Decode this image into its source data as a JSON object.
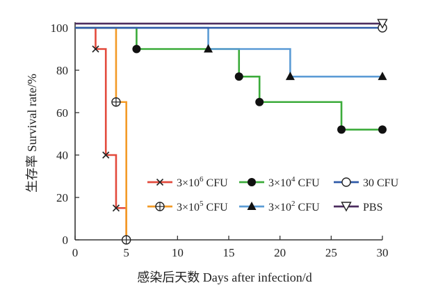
{
  "chart_data": {
    "type": "line",
    "step": true,
    "xlabel": "感染后天数 Days after infection/d",
    "ylabel": "生存率 Survival rate/%",
    "xlim": [
      0,
      30
    ],
    "ylim": [
      0,
      100
    ],
    "xticks": [
      0,
      5,
      10,
      15,
      20,
      25,
      30
    ],
    "yticks": [
      0,
      20,
      40,
      60,
      80,
      100
    ],
    "grid": false,
    "legend_placement": "lower-right, inside plot, two rows of three entries",
    "series": [
      {
        "name": "3×10⁶ CFU",
        "name_base": "3×10",
        "name_exp": "6",
        "name_unit": " CFU",
        "color": "#e34a3c",
        "marker": "x",
        "x": [
          0,
          2,
          3,
          4,
          5
        ],
        "y": [
          100,
          90,
          40,
          15,
          0
        ],
        "marker_x": [
          2,
          3,
          4,
          5
        ],
        "marker_y": [
          90,
          40,
          15,
          0
        ]
      },
      {
        "name": "3×10⁵ CFU",
        "name_base": "3×10",
        "name_exp": "5",
        "name_unit": " CFU",
        "color": "#f39a26",
        "marker": "circle-cross",
        "x": [
          0,
          4,
          5
        ],
        "y": [
          100,
          65,
          0
        ],
        "marker_x": [
          4,
          5
        ],
        "marker_y": [
          65,
          0
        ]
      },
      {
        "name": "3×10⁴ CFU",
        "name_base": "3×10",
        "name_exp": "4",
        "name_unit": " CFU",
        "color": "#3bab3a",
        "marker": "filled-circle",
        "x": [
          0,
          6,
          16,
          18,
          26,
          30
        ],
        "y": [
          100,
          90,
          77,
          65,
          52,
          52
        ],
        "marker_x": [
          6,
          16,
          18,
          26,
          30
        ],
        "marker_y": [
          90,
          77,
          65,
          52,
          52
        ]
      },
      {
        "name": "3×10² CFU",
        "name_base": "3×10",
        "name_exp": "2",
        "name_unit": " CFU",
        "color": "#5b9bd5",
        "marker": "filled-triangle",
        "x": [
          0,
          13,
          21,
          30
        ],
        "y": [
          100,
          90,
          77,
          77
        ],
        "marker_x": [
          13,
          21,
          30
        ],
        "marker_y": [
          90,
          77,
          77
        ]
      },
      {
        "name": "30 CFU",
        "name_base": "30 CFU",
        "name_exp": "",
        "name_unit": "",
        "color": "#2f5aa8",
        "marker": "open-circle",
        "x": [
          0,
          30
        ],
        "y": [
          100,
          100
        ],
        "marker_x": [
          30
        ],
        "marker_y": [
          100
        ]
      },
      {
        "name": "PBS",
        "name_base": "PBS",
        "name_exp": "",
        "name_unit": "",
        "color": "#4b2c5e",
        "marker": "open-triangle-down",
        "x": [
          0,
          30
        ],
        "y": [
          102,
          102
        ],
        "marker_x": [
          30
        ],
        "marker_y": [
          102
        ]
      }
    ]
  }
}
